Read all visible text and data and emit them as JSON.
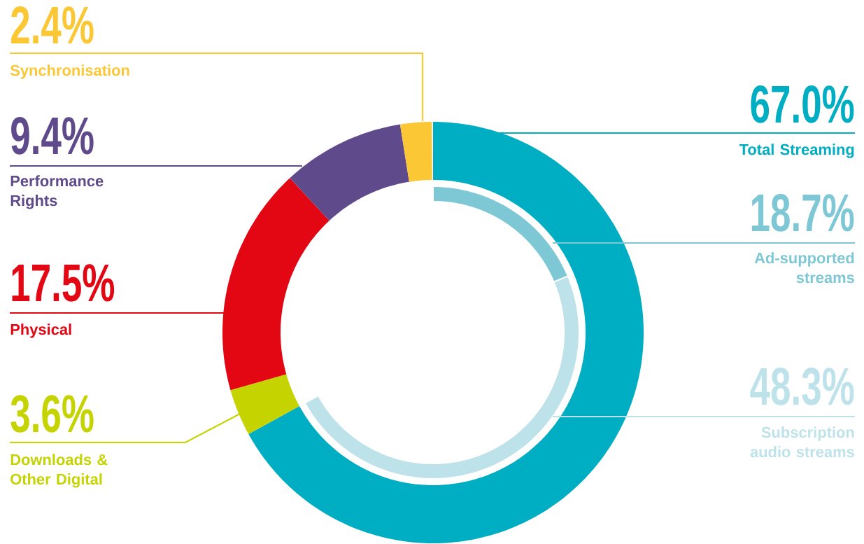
{
  "chart_data": [
    {
      "type": "donut",
      "categories": [
        "Total Streaming",
        "Downloads & Other Digital",
        "Physical",
        "Performance Rights",
        "Synchronisation"
      ],
      "values": [
        67.0,
        3.6,
        17.5,
        9.4,
        2.4
      ],
      "value_labels": [
        "67.0%",
        "3.6%",
        "17.5%",
        "9.4%",
        "2.4%"
      ],
      "colors": [
        "#00aec3",
        "#c5d300",
        "#e30613",
        "#5f4a8b",
        "#fbc735"
      ]
    },
    {
      "type": "donut",
      "categories": [
        "Ad-supported streams",
        "Subscription audio streams"
      ],
      "values": [
        18.7,
        48.3
      ],
      "value_labels": [
        "18.7%",
        "48.3%"
      ],
      "colors": [
        "#7ec8d6",
        "#bde2ea"
      ]
    }
  ]
}
